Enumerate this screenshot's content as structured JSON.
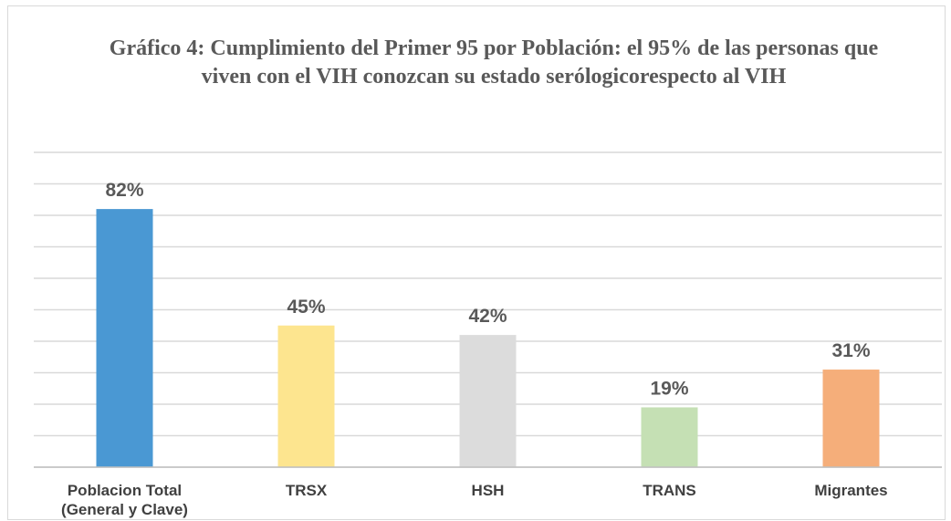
{
  "chart_data": {
    "type": "bar",
    "title": "Gráfico 4: Cumplimiento del Primer 95 por Población: el 95% de las personas que viven con el VIH conozcan su estado serólogicorespecto al VIH",
    "categories": [
      "Poblacion Total (General y Clave)",
      "TRSX",
      "HSH",
      "TRANS",
      "Migrantes"
    ],
    "values": [
      82,
      45,
      42,
      19,
      31
    ],
    "value_labels": [
      "82%",
      "45%",
      "42%",
      "19%",
      "31%"
    ],
    "colors": [
      "#4a98d3",
      "#fde58f",
      "#dcdcdc",
      "#c5e0b4",
      "#f5ae7a"
    ],
    "ylim": [
      0,
      100
    ],
    "yticks": [
      0,
      10,
      20,
      30,
      40,
      50,
      60,
      70,
      80,
      90,
      100
    ],
    "grid": true
  }
}
